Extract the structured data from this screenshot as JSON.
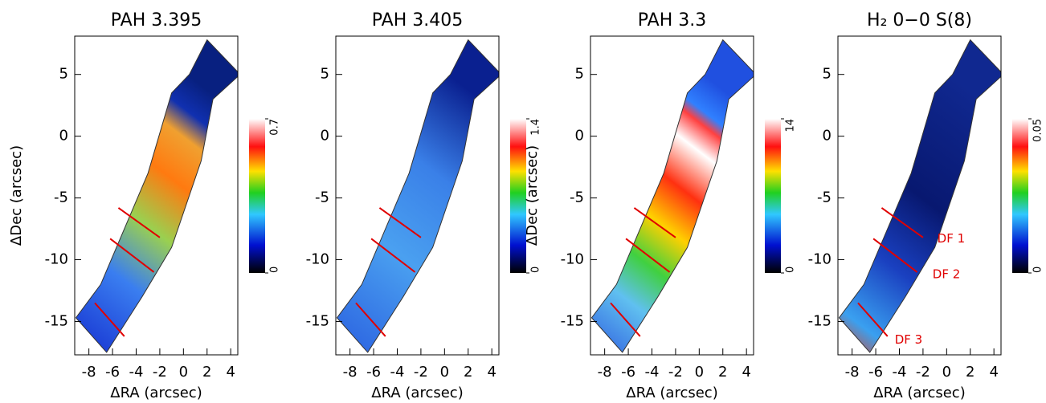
{
  "chart_data": [
    {
      "type": "map",
      "title": "PAH 3.395",
      "xlabel": "ΔRA (arcsec)",
      "ylabel": "ΔDec (arcsec)",
      "xlim": [
        -9.2,
        4.6
      ],
      "ylim": [
        -17.7,
        8.1
      ],
      "xticks": [
        -8,
        -6,
        -4,
        -2,
        0,
        2,
        4
      ],
      "yticks": [
        -15,
        -10,
        -5,
        0,
        5
      ],
      "zlim": [
        0,
        0.7
      ],
      "zticks": [
        0,
        0.7
      ]
    },
    {
      "type": "map",
      "title": "PAH 3.405",
      "xlabel": "ΔRA (arcsec)",
      "xlim": [
        -9.2,
        4.6
      ],
      "ylim": [
        -17.7,
        8.1
      ],
      "xticks": [
        -8,
        -6,
        -4,
        -2,
        0,
        2,
        4
      ],
      "yticks": [
        -15,
        -10,
        -5,
        0,
        5
      ],
      "zlim": [
        0,
        1.4
      ],
      "zticks": [
        0,
        1.4
      ]
    },
    {
      "type": "map",
      "title": "PAH 3.3",
      "xlabel": "ΔRA (arcsec)",
      "ylabel": "ΔDec (arcsec)",
      "xlim": [
        -9.2,
        4.6
      ],
      "ylim": [
        -17.7,
        8.1
      ],
      "xticks": [
        -8,
        -6,
        -4,
        -2,
        0,
        2,
        4
      ],
      "yticks": [
        -15,
        -10,
        -5,
        0,
        5
      ],
      "zlim": [
        0,
        14
      ],
      "zticks": [
        0,
        14
      ]
    },
    {
      "type": "map",
      "title": "H₂ 0−0 S(8)",
      "xlabel": "ΔRA (arcsec)",
      "xlim": [
        -9.2,
        4.6
      ],
      "ylim": [
        -17.7,
        8.1
      ],
      "xticks": [
        -8,
        -6,
        -4,
        -2,
        0,
        2,
        4
      ],
      "yticks": [
        -15,
        -10,
        -5,
        0,
        5
      ],
      "zlim": [
        0,
        0.05
      ],
      "zticks": [
        0,
        0.05
      ],
      "annotations": [
        "DF 1",
        "DF 2",
        "DF 3"
      ]
    }
  ]
}
